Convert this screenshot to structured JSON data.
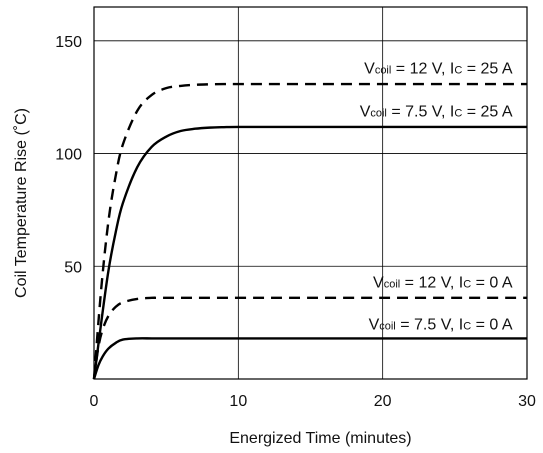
{
  "chart_data": {
    "type": "line",
    "title": "",
    "xlabel": "Energized Time (minutes)",
    "ylabel": "Coil Temperature Rise (˚C)",
    "xlim": [
      0,
      30
    ],
    "ylim": [
      0,
      165
    ],
    "xticks": [
      0,
      10,
      20,
      30
    ],
    "yticks": [
      50,
      100,
      150
    ],
    "grid": true,
    "series": [
      {
        "name": "Vcoil = 12 V, Ic = 25 A",
        "style": "dashed",
        "color": "#000000",
        "x": [
          0,
          0.5,
          1,
          1.5,
          2,
          3,
          4,
          5,
          6,
          7,
          8,
          9,
          10,
          15,
          20,
          25,
          30
        ],
        "y": [
          0,
          40,
          70,
          90,
          104,
          119,
          126,
          129,
          130,
          130.5,
          130.7,
          130.8,
          130.8,
          130.8,
          130.8,
          130.8,
          130.8
        ]
      },
      {
        "name": "Vcoil = 7.5 V, Ic = 25 A",
        "style": "solid",
        "color": "#000000",
        "x": [
          0,
          0.5,
          1,
          1.5,
          2,
          3,
          4,
          5,
          6,
          7,
          8,
          9,
          10,
          15,
          20,
          25,
          30
        ],
        "y": [
          0,
          25,
          48,
          65,
          78,
          94,
          103,
          107.5,
          110,
          111,
          111.5,
          111.7,
          111.8,
          111.8,
          111.8,
          111.8,
          111.8
        ]
      },
      {
        "name": "Vcoil = 12 V, Ic = 0 A",
        "style": "dashed",
        "color": "#000000",
        "x": [
          0,
          0.3,
          0.6,
          1,
          1.5,
          2,
          3,
          4,
          5,
          10,
          20,
          30
        ],
        "y": [
          0,
          14,
          22,
          28,
          32,
          34,
          35.5,
          36,
          36,
          36,
          36,
          36
        ]
      },
      {
        "name": "Vcoil = 7.5 V, Ic = 0 A",
        "style": "solid",
        "color": "#000000",
        "x": [
          0,
          0.3,
          0.6,
          1,
          1.5,
          2,
          3,
          4,
          5,
          10,
          20,
          30
        ],
        "y": [
          0,
          6,
          10,
          13.5,
          16,
          17.5,
          18,
          18,
          18,
          18,
          18,
          18
        ]
      }
    ],
    "annotations": [
      {
        "base": "V",
        "sub": "coil",
        "rest": " = 12 V, I",
        "sub2": "C",
        "rest2": " = 25 A",
        "x": 29,
        "y": 135.5
      },
      {
        "base": "V",
        "sub": "coil",
        "rest": " = 7.5 V, I",
        "sub2": "C",
        "rest2": " = 25 A",
        "x": 29,
        "y": 116.5
      },
      {
        "base": "V",
        "sub": "coil",
        "rest": " = 12 V, I",
        "sub2": "C",
        "rest2": " = 0 A",
        "x": 29,
        "y": 40.5
      },
      {
        "base": "V",
        "sub": "coil",
        "rest": " = 7.5 V, I",
        "sub2": "C",
        "rest2": " = 0 A",
        "x": 29,
        "y": 22
      }
    ]
  }
}
